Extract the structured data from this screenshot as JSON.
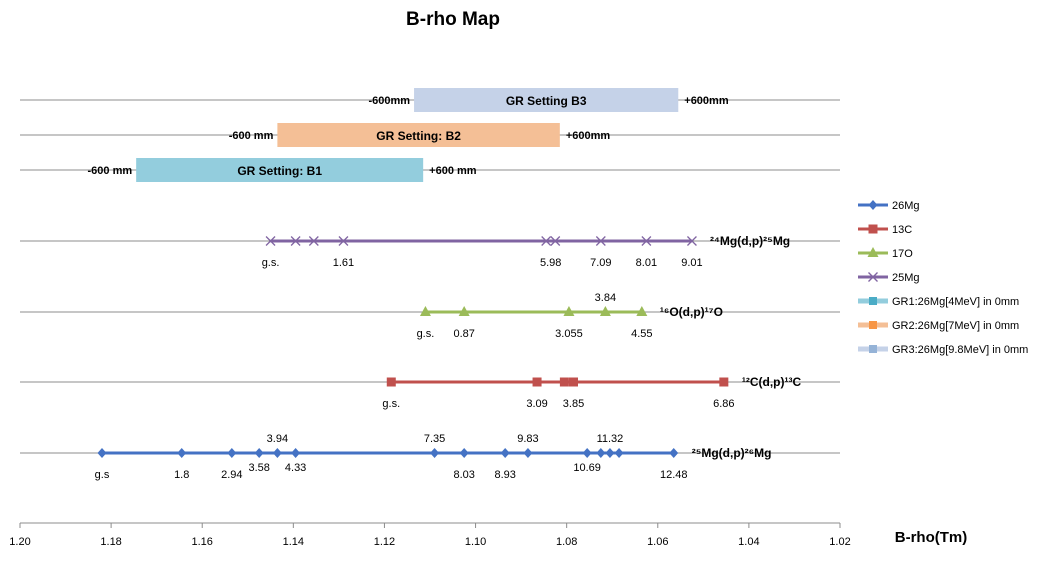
{
  "chart_data": {
    "type": "scatter",
    "title": "B-rho Map",
    "xlabel": "B-rho(Tm)",
    "x_reversed": true,
    "xlim": [
      1.2,
      1.02
    ],
    "x_ticks": [
      "1.20",
      "1.18",
      "1.16",
      "1.14",
      "1.12",
      "1.10",
      "1.08",
      "1.06",
      "1.04",
      "1.02"
    ],
    "colors": {
      "26Mg": "#4472c4",
      "13C": "#c0504d",
      "17O": "#9bbb59",
      "25Mg": "#8064a2",
      "GR1": "#93cddd",
      "GR2": "#f4bf96",
      "GR3": "#c5d2e8",
      "GR1_legend": "#4bacc6",
      "GR2_legend": "#f79646",
      "GR3_legend": "#95b3d7"
    },
    "series": [
      {
        "name": "26Mg",
        "row": 1,
        "marker": "diamond",
        "reaction": "²⁵Mg(d,p)²⁶Mg",
        "x": [
          1.182,
          1.1645,
          1.1535,
          1.1475,
          1.1435,
          1.1395,
          1.109,
          1.1025,
          1.0935,
          1.0885,
          1.0755,
          1.0725,
          1.0705,
          1.0685,
          1.0565
        ],
        "labels": [
          {
            "text": "g.s",
            "x": 1.182,
            "pos": "below"
          },
          {
            "text": "1.8",
            "x": 1.1645,
            "pos": "below"
          },
          {
            "text": "2.94",
            "x": 1.1535,
            "pos": "below"
          },
          {
            "text": "3.58",
            "x": 1.1475,
            "pos": "below2"
          },
          {
            "text": "3.94",
            "x": 1.1435,
            "pos": "above"
          },
          {
            "text": "4.33",
            "x": 1.1395,
            "pos": "below2"
          },
          {
            "text": "7.35",
            "x": 1.109,
            "pos": "above"
          },
          {
            "text": "8.03",
            "x": 1.1025,
            "pos": "below"
          },
          {
            "text": "8.93",
            "x": 1.0935,
            "pos": "below"
          },
          {
            "text": "9.83",
            "x": 1.0885,
            "pos": "above"
          },
          {
            "text": "10.69",
            "x": 1.0755,
            "pos": "below2"
          },
          {
            "text": "11.32",
            "x": 1.0705,
            "pos": "above"
          },
          {
            "text": "12.48",
            "x": 1.0565,
            "pos": "below"
          }
        ]
      },
      {
        "name": "13C",
        "row": 2,
        "marker": "square",
        "reaction": "¹²C(d,p)¹³C",
        "x": [
          1.1185,
          1.0865,
          1.0805,
          1.0785,
          1.0455
        ],
        "labels": [
          {
            "text": "g.s.",
            "x": 1.1185,
            "pos": "below"
          },
          {
            "text": "3.09",
            "x": 1.0865,
            "pos": "below"
          },
          {
            "text": "3.85",
            "x": 1.0785,
            "pos": "below"
          },
          {
            "text": "6.86",
            "x": 1.0455,
            "pos": "below"
          }
        ]
      },
      {
        "name": "17O",
        "row": 3,
        "marker": "triangle",
        "reaction": "¹⁶O(d,p)¹⁷O",
        "x": [
          1.111,
          1.1025,
          1.0795,
          1.0715,
          1.0635
        ],
        "labels": [
          {
            "text": "g.s.",
            "x": 1.111,
            "pos": "below"
          },
          {
            "text": "0.87",
            "x": 1.1025,
            "pos": "below"
          },
          {
            "text": "3.055",
            "x": 1.0795,
            "pos": "below"
          },
          {
            "text": "3.84",
            "x": 1.0715,
            "pos": "above"
          },
          {
            "text": "4.55",
            "x": 1.0635,
            "pos": "below"
          }
        ]
      },
      {
        "name": "25Mg",
        "row": 4,
        "marker": "x",
        "reaction": "²⁴Mg(d,p)²⁵Mg",
        "x": [
          1.145,
          1.1395,
          1.1355,
          1.129,
          1.0845,
          1.0825,
          1.0725,
          1.0625,
          1.0525
        ],
        "labels": [
          {
            "text": "g.s.",
            "x": 1.145,
            "pos": "below"
          },
          {
            "text": "1.61",
            "x": 1.129,
            "pos": "below"
          },
          {
            "text": "5.98",
            "x": 1.0835,
            "pos": "below"
          },
          {
            "text": "7.09",
            "x": 1.0725,
            "pos": "below"
          },
          {
            "text": "8.01",
            "x": 1.0625,
            "pos": "below"
          },
          {
            "text": "9.01",
            "x": 1.0525,
            "pos": "below"
          }
        ]
      }
    ],
    "settings": [
      {
        "name": "GR1:26Mg[4MeV] in 0mm",
        "label": "GR Setting: B1",
        "row": 5,
        "x_start": 1.1745,
        "x_end": 1.1115,
        "left_text": "-600 mm",
        "right_text": "+600 mm",
        "color_key": "GR1"
      },
      {
        "name": "GR2:26Mg[7MeV] in 0mm",
        "label": "GR Setting: B2",
        "row": 6,
        "x_start": 1.1435,
        "x_end": 1.0815,
        "left_text": "-600 mm",
        "right_text": "+600mm",
        "color_key": "GR2"
      },
      {
        "name": "GR3:26Mg[9.8MeV] in 0mm",
        "label": "GR Setting B3",
        "row": 7,
        "x_start": 1.1135,
        "x_end": 1.0555,
        "left_text": "-600mm",
        "right_text": "+600mm",
        "color_key": "GR3"
      }
    ],
    "legend": {
      "placement": "right",
      "entries": [
        "26Mg",
        "13C",
        "17O",
        "25Mg",
        "GR1:26Mg[4MeV] in 0mm",
        "GR2:26Mg[7MeV] in 0mm",
        "GR3:26Mg[9.8MeV] in 0mm"
      ]
    },
    "grid": true
  }
}
